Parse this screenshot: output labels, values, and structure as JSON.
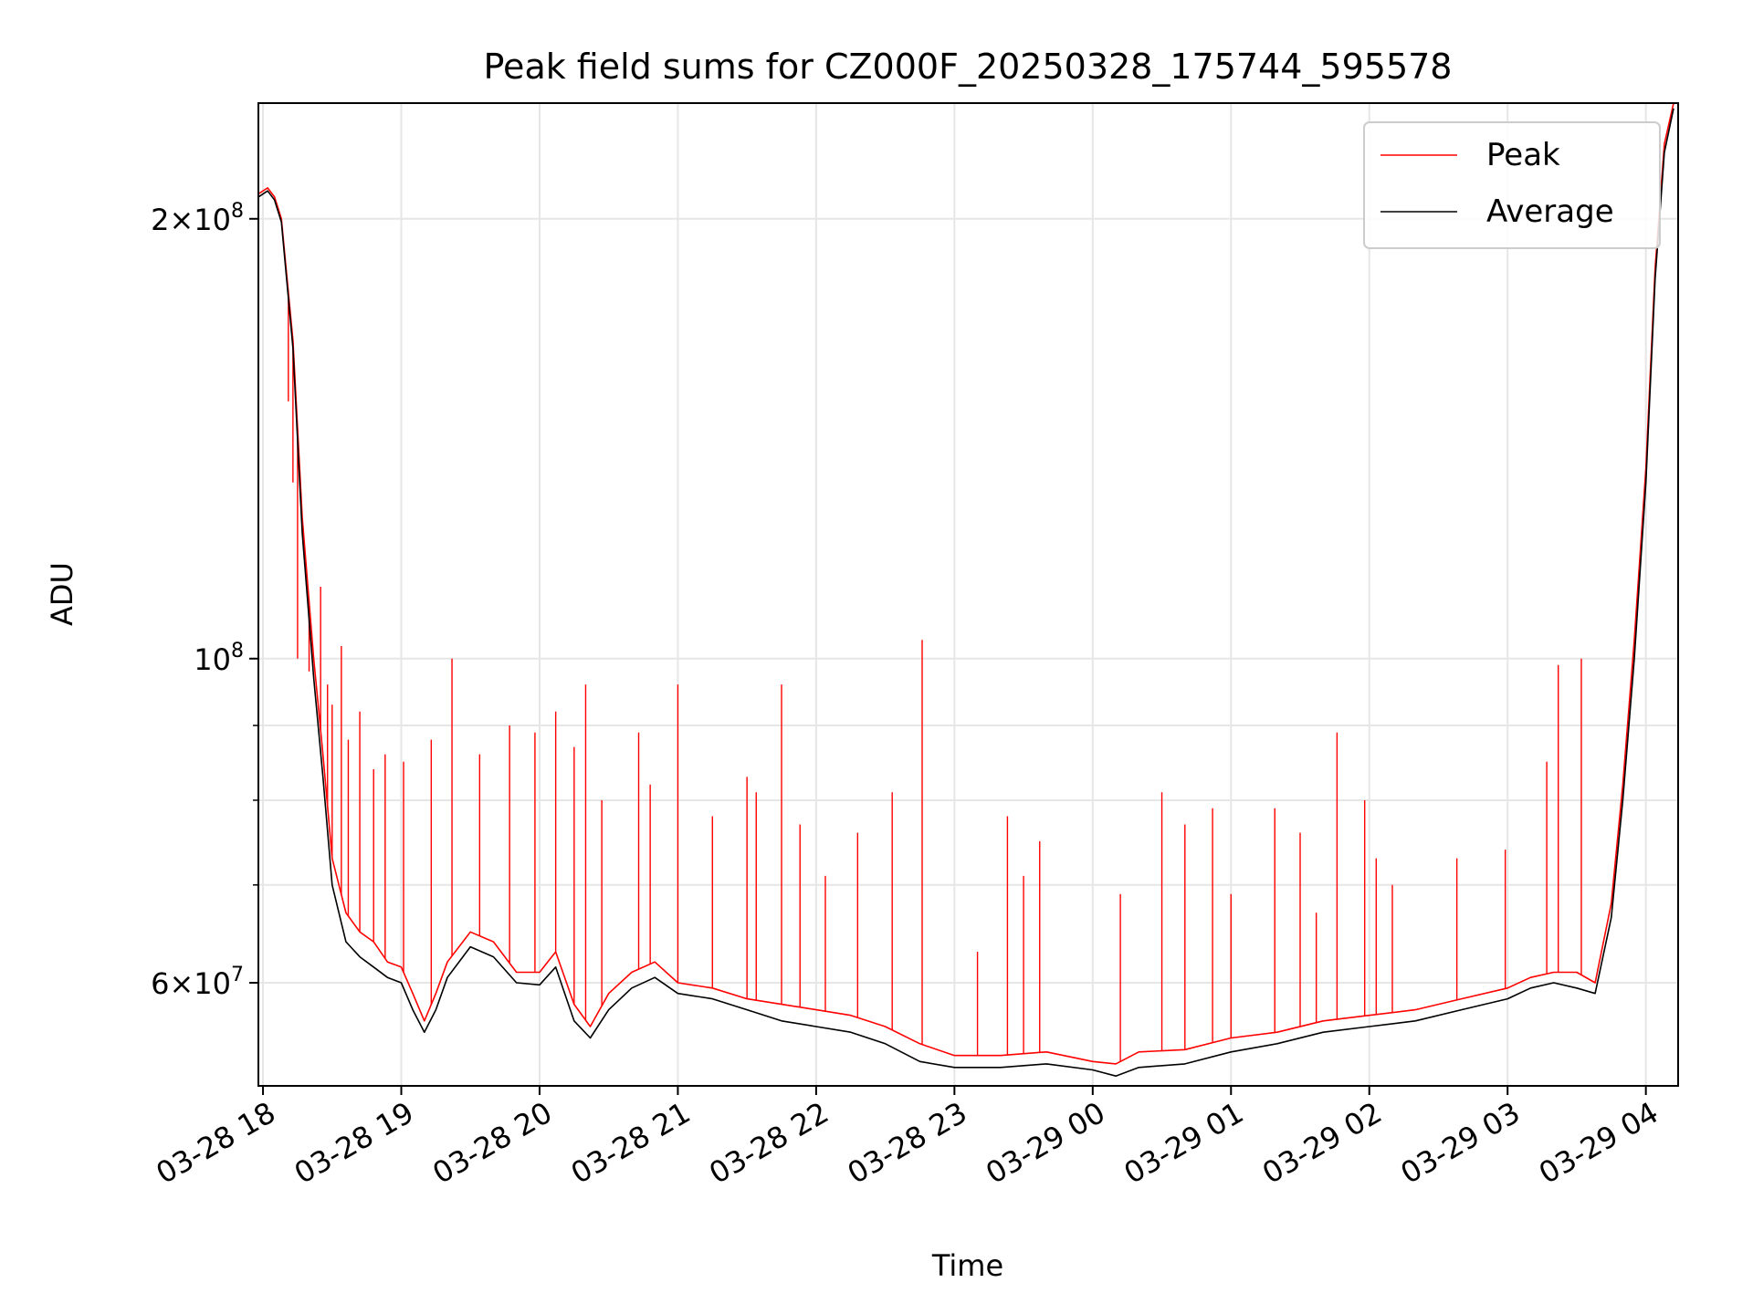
{
  "chart_data": {
    "type": "line",
    "title": "Peak field sums for CZ000F_20250328_175744_595578",
    "xlabel": "Time",
    "ylabel": "ADU",
    "yscale": "log",
    "ylim": [
      51000000,
      240000000
    ],
    "xlim": [
      "03-28 17:58",
      "03-29 04:14"
    ],
    "grid": true,
    "legend_position": "top-right",
    "x_ticks": [
      "03-28 18",
      "03-28 19",
      "03-28 20",
      "03-28 21",
      "03-28 22",
      "03-28 23",
      "03-29 00",
      "03-29 01",
      "03-29 02",
      "03-29 03",
      "03-29 04"
    ],
    "x_tick_times": [
      "03-28 18:00",
      "03-28 19:00",
      "03-28 20:00",
      "03-28 21:00",
      "03-28 22:00",
      "03-28 23:00",
      "03-29 00:00",
      "03-29 01:00",
      "03-29 02:00",
      "03-29 03:00",
      "03-29 04:00"
    ],
    "y_major_ticks": [
      {
        "value": 60000000,
        "mantissa": "6",
        "exponent": "7"
      },
      {
        "value": 100000000,
        "mantissa": "",
        "exponent": "8"
      },
      {
        "value": 200000000,
        "mantissa": "2",
        "exponent": "8"
      }
    ],
    "y_minor_ticks": [
      70000000,
      80000000,
      90000000
    ],
    "series": [
      {
        "name": "Peak",
        "color": "#ff0000",
        "x": [
          "03-28 17:58",
          "03-28 18:02",
          "03-28 18:05",
          "03-28 18:08",
          "03-28 18:13",
          "03-28 18:17",
          "03-28 18:22",
          "03-28 18:26",
          "03-28 18:30",
          "03-28 18:36",
          "03-28 18:42",
          "03-28 18:48",
          "03-28 18:54",
          "03-28 19:00",
          "03-28 19:05",
          "03-28 19:10",
          "03-28 19:15",
          "03-28 19:20",
          "03-28 19:30",
          "03-28 19:40",
          "03-28 19:50",
          "03-28 20:00",
          "03-28 20:07",
          "03-28 20:15",
          "03-28 20:22",
          "03-28 20:30",
          "03-28 20:40",
          "03-28 20:50",
          "03-28 21:00",
          "03-28 21:15",
          "03-28 21:30",
          "03-28 21:45",
          "03-28 22:00",
          "03-28 22:15",
          "03-28 22:30",
          "03-28 22:45",
          "03-28 23:00",
          "03-28 23:20",
          "03-28 23:40",
          "03-29 00:00",
          "03-29 00:10",
          "03-29 00:20",
          "03-29 00:40",
          "03-29 01:00",
          "03-29 01:20",
          "03-29 01:40",
          "03-29 02:00",
          "03-29 02:20",
          "03-29 02:40",
          "03-29 03:00",
          "03-29 03:10",
          "03-29 03:20",
          "03-29 03:30",
          "03-29 03:38",
          "03-29 03:45",
          "03-29 03:50",
          "03-29 03:55",
          "03-29 04:00",
          "03-29 04:04",
          "03-29 04:08",
          "03-29 04:12"
        ],
        "values": [
          208000000,
          210000000,
          207000000,
          200000000,
          165000000,
          125000000,
          100000000,
          86000000,
          73000000,
          67000000,
          65000000,
          64000000,
          62000000,
          61500000,
          59000000,
          56500000,
          59000000,
          62000000,
          65000000,
          64000000,
          61000000,
          61000000,
          63000000,
          58000000,
          56000000,
          59000000,
          61000000,
          62000000,
          60000000,
          59500000,
          58500000,
          58000000,
          57500000,
          57000000,
          56000000,
          54500000,
          53500000,
          53500000,
          53800000,
          53000000,
          52800000,
          53800000,
          54000000,
          55000000,
          55500000,
          56500000,
          57000000,
          57500000,
          58500000,
          59500000,
          60500000,
          61000000,
          61000000,
          60000000,
          68000000,
          82000000,
          103000000,
          135000000,
          185000000,
          225000000,
          240000000
        ]
      },
      {
        "name": "Average",
        "color": "#000000",
        "x": [
          "03-28 17:58",
          "03-28 18:02",
          "03-28 18:05",
          "03-28 18:08",
          "03-28 18:13",
          "03-28 18:17",
          "03-28 18:22",
          "03-28 18:26",
          "03-28 18:30",
          "03-28 18:36",
          "03-28 18:42",
          "03-28 18:48",
          "03-28 18:54",
          "03-28 19:00",
          "03-28 19:05",
          "03-28 19:10",
          "03-28 19:15",
          "03-28 19:20",
          "03-28 19:30",
          "03-28 19:40",
          "03-28 19:50",
          "03-28 20:00",
          "03-28 20:07",
          "03-28 20:15",
          "03-28 20:22",
          "03-28 20:30",
          "03-28 20:40",
          "03-28 20:50",
          "03-28 21:00",
          "03-28 21:15",
          "03-28 21:30",
          "03-28 21:45",
          "03-28 22:00",
          "03-28 22:15",
          "03-28 22:30",
          "03-28 22:45",
          "03-28 23:00",
          "03-28 23:20",
          "03-28 23:40",
          "03-29 00:00",
          "03-29 00:10",
          "03-29 00:20",
          "03-29 00:40",
          "03-29 01:00",
          "03-29 01:20",
          "03-29 01:40",
          "03-29 02:00",
          "03-29 02:20",
          "03-29 02:40",
          "03-29 03:00",
          "03-29 03:10",
          "03-29 03:20",
          "03-29 03:30",
          "03-29 03:38",
          "03-29 03:45",
          "03-29 03:50",
          "03-29 03:55",
          "03-29 04:00",
          "03-29 04:04",
          "03-29 04:08",
          "03-29 04:12"
        ],
        "values": [
          207000000,
          209000000,
          206000000,
          199000000,
          163000000,
          122000000,
          97000000,
          83000000,
          70000000,
          64000000,
          62500000,
          61500000,
          60500000,
          60000000,
          57500000,
          55500000,
          57500000,
          60500000,
          63500000,
          62500000,
          60000000,
          59800000,
          61500000,
          56500000,
          55000000,
          57500000,
          59500000,
          60500000,
          59000000,
          58500000,
          57500000,
          56500000,
          56000000,
          55500000,
          54500000,
          53000000,
          52500000,
          52500000,
          52800000,
          52300000,
          51800000,
          52500000,
          52800000,
          53800000,
          54500000,
          55500000,
          56000000,
          56500000,
          57500000,
          58500000,
          59500000,
          60000000,
          59500000,
          59000000,
          66500000,
          80000000,
          100000000,
          132000000,
          182000000,
          222000000,
          238000000
        ]
      }
    ],
    "spikes": {
      "series": "Peak",
      "x": [
        "03-28 18:11",
        "03-28 18:13",
        "03-28 18:15",
        "03-28 18:20",
        "03-28 18:25",
        "03-28 18:28",
        "03-28 18:30",
        "03-28 18:34",
        "03-28 18:37",
        "03-28 18:42",
        "03-28 18:48",
        "03-28 18:53",
        "03-28 19:01",
        "03-28 19:13",
        "03-28 19:22",
        "03-28 19:34",
        "03-28 19:47",
        "03-28 19:58",
        "03-28 20:07",
        "03-28 20:15",
        "03-28 20:20",
        "03-28 20:27",
        "03-28 20:43",
        "03-28 20:48",
        "03-28 21:00",
        "03-28 21:15",
        "03-28 21:30",
        "03-28 21:34",
        "03-28 21:45",
        "03-28 21:53",
        "03-28 22:04",
        "03-28 22:18",
        "03-28 22:33",
        "03-28 22:46",
        "03-28 23:10",
        "03-28 23:23",
        "03-28 23:30",
        "03-28 23:37",
        "03-29 00:12",
        "03-29 00:30",
        "03-29 00:40",
        "03-29 00:52",
        "03-29 01:00",
        "03-29 01:19",
        "03-29 01:30",
        "03-29 01:37",
        "03-29 01:46",
        "03-29 01:58",
        "03-29 02:03",
        "03-29 02:10",
        "03-29 02:38",
        "03-29 02:59",
        "03-29 03:17",
        "03-29 03:22",
        "03-29 03:32"
      ],
      "values": [
        150000000,
        132000000,
        100000000,
        98000000,
        112000000,
        96000000,
        93000000,
        102000000,
        88000000,
        92000000,
        84000000,
        86000000,
        85000000,
        88000000,
        100000000,
        86000000,
        90000000,
        89000000,
        92000000,
        87000000,
        96000000,
        80000000,
        89000000,
        82000000,
        96000000,
        78000000,
        83000000,
        81000000,
        96000000,
        77000000,
        71000000,
        76000000,
        81000000,
        103000000,
        63000000,
        78000000,
        71000000,
        75000000,
        69000000,
        81000000,
        77000000,
        79000000,
        69000000,
        79000000,
        76000000,
        67000000,
        89000000,
        80000000,
        73000000,
        70000000,
        73000000,
        74000000,
        85000000,
        99000000,
        100000000
      ]
    }
  }
}
